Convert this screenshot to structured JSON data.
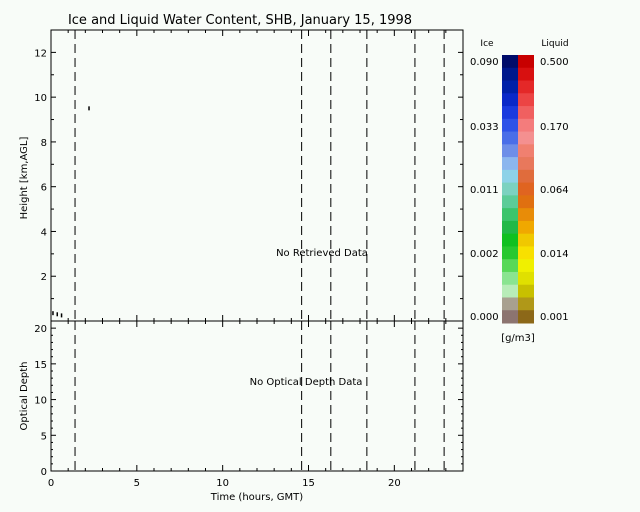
{
  "chart_data": [
    {
      "type": "heatmap",
      "title": "Ice and Liquid Water Content, SHB, January 15, 1998",
      "ylabel": "Height [km,AGL]",
      "xlim": [
        0,
        24
      ],
      "ylim": [
        0,
        13
      ],
      "x_ticks": [
        "0",
        "5",
        "10",
        "15",
        "20"
      ],
      "y_ticks": [
        "2",
        "4",
        "6",
        "8",
        "10",
        "12"
      ],
      "grid": false,
      "dashed_times": [
        1.4,
        14.6,
        16.3,
        18.4,
        21.2,
        22.9
      ],
      "annotation": "No Retrieved Data",
      "points": [
        {
          "x": 2.2,
          "y": 9.5
        },
        {
          "x": 0.1,
          "y": 0.35
        },
        {
          "x": 0.35,
          "y": 0.3
        },
        {
          "x": 0.6,
          "y": 0.25
        }
      ]
    },
    {
      "type": "line",
      "ylabel": "Optical Depth",
      "xlabel": "Time (hours, GMT)",
      "xlim": [
        0,
        24
      ],
      "ylim": [
        0,
        21
      ],
      "x_ticks": [
        "0",
        "5",
        "10",
        "15",
        "20"
      ],
      "y_ticks": [
        "0",
        "5",
        "10",
        "15",
        "20"
      ],
      "grid": false,
      "dashed_times": [
        1.4,
        14.6,
        16.3,
        18.4,
        21.2,
        22.9
      ],
      "annotation": "No Optical Depth Data"
    }
  ],
  "legend": {
    "ice_title": "Ice",
    "liquid_title": "Liquid",
    "units": "[g/m3]",
    "ice_labels": [
      "0.090",
      "0.033",
      "0.011",
      "0.002",
      "0.000"
    ],
    "liquid_labels": [
      "0.500",
      "0.170",
      "0.064",
      "0.014",
      "0.001"
    ],
    "ice_colors": [
      "#000c6a",
      "#00188c",
      "#0020a8",
      "#0a28c8",
      "#1a3ade",
      "#2e52e8",
      "#4a6ee8",
      "#6e8ee8",
      "#8cb6ee",
      "#8ed2e8",
      "#7cd2c0",
      "#5ccc98",
      "#3cc46c",
      "#22b848",
      "#10c020",
      "#28c830",
      "#58d858",
      "#8ae490",
      "#b8ecb8",
      "#a8a090",
      "#8c7470"
    ],
    "liquid_colors": [
      "#c80000",
      "#d81010",
      "#e42828",
      "#ec4444",
      "#f06060",
      "#f47c7c",
      "#f49090",
      "#f08070",
      "#e8785c",
      "#e06c3c",
      "#e06420",
      "#e07010",
      "#e88c08",
      "#f0a800",
      "#f0c800",
      "#f8e000",
      "#f0f000",
      "#e0e000",
      "#c8c000",
      "#b09818",
      "#8c6818"
    ]
  }
}
